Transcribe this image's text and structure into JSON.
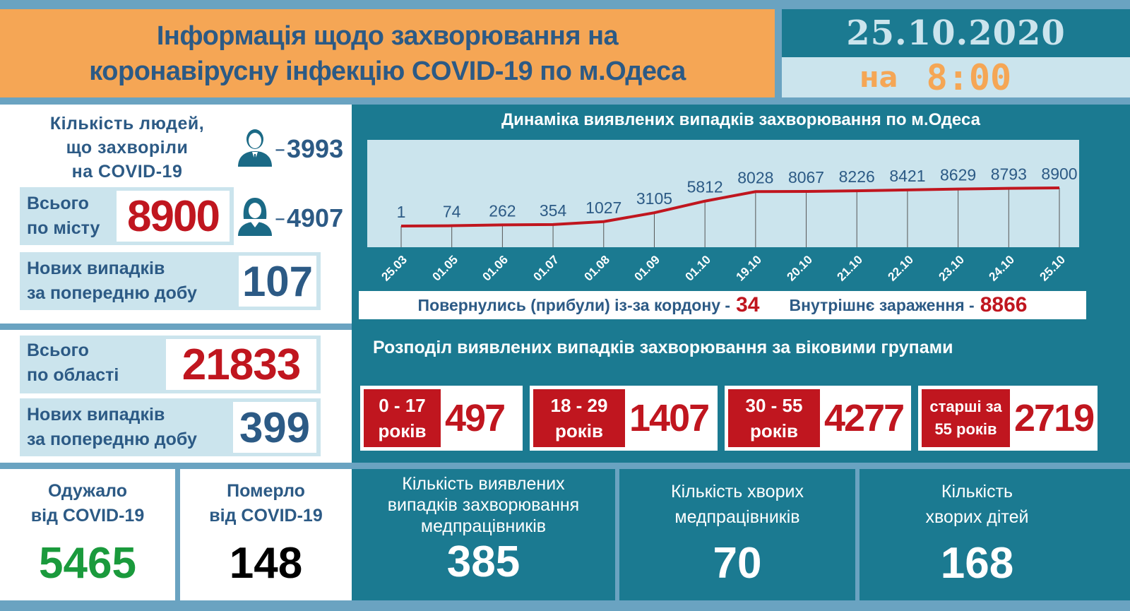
{
  "header": {
    "title_line1": "Інформація щодо захворювання на",
    "title_line2": "коронавірусну інфекцію COVID-19 по м.Одеса",
    "date": "25.10.2020",
    "time_prefix": "на",
    "time": "8:00"
  },
  "city": {
    "people_title_line1": "Кількість людей,",
    "people_title_line2": "що захворіли",
    "people_title_line3": "на COVID-19",
    "male_count": "3993",
    "female_count": "4907",
    "dash": "–",
    "total_label_line1": "Всього",
    "total_label_line2": "по місту",
    "total_value": "8900",
    "new_label_line1": "Нових випадків",
    "new_label_line2": "за попередню добу",
    "new_value": "107"
  },
  "region": {
    "total_label_line1": "Всього",
    "total_label_line2": "по області",
    "total_value": "21833",
    "new_label_line1": "Нових випадків",
    "new_label_line2": "за попередню добу",
    "new_value": "399"
  },
  "chart_data": {
    "type": "line",
    "title": "Динаміка виявлених випадків захворювання по м.Одеса",
    "categories": [
      "25.03",
      "01.05",
      "01.06",
      "01.07",
      "01.08",
      "01.09",
      "01.10",
      "19.10",
      "20.10",
      "21.10",
      "22.10",
      "23.10",
      "24.10",
      "25.10"
    ],
    "values": [
      1,
      74,
      262,
      354,
      1027,
      3105,
      5812,
      8028,
      8067,
      8226,
      8421,
      8629,
      8793,
      8900
    ],
    "series_color": "#c0161f",
    "xlabel": "",
    "ylabel": "",
    "grid": "vertical",
    "legend": "none"
  },
  "chart_footer": {
    "returned_label": "Повернулись (прибули) із-за кордону -",
    "returned_value": "34",
    "internal_label": "Внутрішнє зараження  -",
    "internal_value": "8866"
  },
  "age_groups": {
    "title": "Розподіл виявлених випадків захворювання за віковими групами",
    "groups": [
      {
        "line1": "0 - 17",
        "line2": "років",
        "value": "497"
      },
      {
        "line1": "18 - 29",
        "line2": "років",
        "value": "1407"
      },
      {
        "line1": "30 - 55",
        "line2": "років",
        "value": "4277"
      },
      {
        "line1": "старші за",
        "line2": "55 років",
        "value": "2719"
      }
    ]
  },
  "bottom": {
    "recovered": {
      "line1": "Одужало",
      "line2": "від COVID-19",
      "value": "5465"
    },
    "died": {
      "line1": "Померло",
      "line2": "від COVID-19",
      "value": "148"
    },
    "med_cases": {
      "line1": "Кількість виявлених",
      "line2": "випадків захворювання",
      "line3": "медпрацівників",
      "value": "385"
    },
    "med_sick": {
      "line1": "Кількість хворих",
      "line2": "медпрацівників",
      "value": "70"
    },
    "children": {
      "line1": "Кількість",
      "line2": "хворих дітей",
      "value": "168"
    }
  },
  "colors": {
    "orange": "#f5a655",
    "teal": "#1b7a91",
    "light_blue": "#cbe4ed",
    "navy_text": "#2c5a85",
    "red": "#c0161f",
    "green": "#1a9a3c"
  }
}
